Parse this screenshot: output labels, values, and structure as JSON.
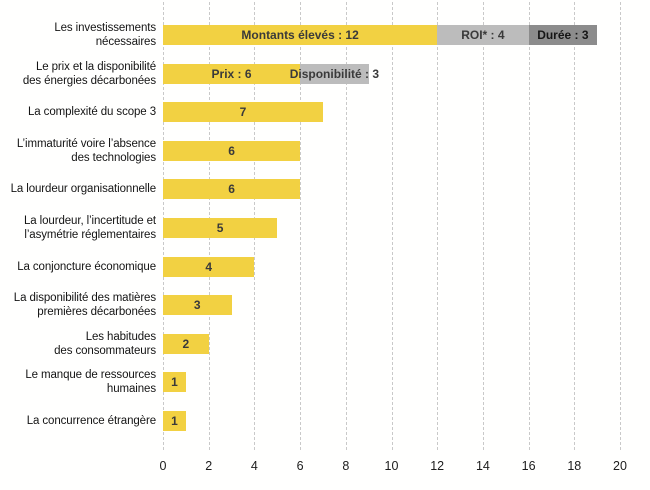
{
  "chart_data": {
    "type": "bar",
    "orientation": "horizontal",
    "stacked": true,
    "title": "",
    "xlabel": "",
    "ylabel": "",
    "x_axis": {
      "min": 0,
      "max": 20,
      "ticks": [
        0,
        2,
        4,
        6,
        8,
        10,
        12,
        14,
        16,
        18,
        20
      ],
      "grid": "vertical-dashed"
    },
    "colors": {
      "yellow": "#F2D142",
      "gray_light": "#BCBCBC",
      "gray_dark": "#8C8C8C",
      "bar_label_text": "#3A3A3A",
      "bar_label_text_dark": "#161616",
      "gridline": "#C9C9C9"
    },
    "rows": [
      {
        "label": "Les investissements\nnécessaires",
        "total": 19,
        "segments": [
          {
            "label": "Montants élevés : 12",
            "value": 12,
            "color": "yellow"
          },
          {
            "label": "ROI* : 4",
            "value": 4,
            "color": "gray_light"
          },
          {
            "label": "Durée : 3",
            "value": 3,
            "color": "gray_dark"
          }
        ]
      },
      {
        "label": "Le prix et la disponibilité\ndes énergies décarbonées",
        "total": 9,
        "segments": [
          {
            "label": "Prix : 6",
            "value": 6,
            "color": "yellow"
          },
          {
            "label": "Disponibilité : 3",
            "value": 3,
            "color": "gray_light"
          }
        ]
      },
      {
        "label": "La complexité du scope 3",
        "total": 7,
        "segments": [
          {
            "label": "7",
            "value": 7,
            "color": "yellow"
          }
        ]
      },
      {
        "label": "L’immaturité voire l’absence\ndes technologies",
        "total": 6,
        "segments": [
          {
            "label": "6",
            "value": 6,
            "color": "yellow"
          }
        ]
      },
      {
        "label": "La lourdeur organisationnelle",
        "total": 6,
        "segments": [
          {
            "label": "6",
            "value": 6,
            "color": "yellow"
          }
        ]
      },
      {
        "label": "La lourdeur, l’incertitude et\nl’asymétrie réglementaires",
        "total": 5,
        "segments": [
          {
            "label": "5",
            "value": 5,
            "color": "yellow"
          }
        ]
      },
      {
        "label": "La conjoncture économique",
        "total": 4,
        "segments": [
          {
            "label": "4",
            "value": 4,
            "color": "yellow"
          }
        ]
      },
      {
        "label": "La disponibilité des matières\npremières décarbonées",
        "total": 3,
        "segments": [
          {
            "label": "3",
            "value": 3,
            "color": "yellow"
          }
        ]
      },
      {
        "label": "Les habitudes\ndes consommateurs",
        "total": 2,
        "segments": [
          {
            "label": "2",
            "value": 2,
            "color": "yellow"
          }
        ]
      },
      {
        "label": "Le manque de ressources\nhumaines",
        "total": 1,
        "segments": [
          {
            "label": "1",
            "value": 1,
            "color": "yellow"
          }
        ]
      },
      {
        "label": "La concurrence étrangère",
        "total": 1,
        "segments": [
          {
            "label": "1",
            "value": 1,
            "color": "yellow"
          }
        ]
      }
    ]
  }
}
